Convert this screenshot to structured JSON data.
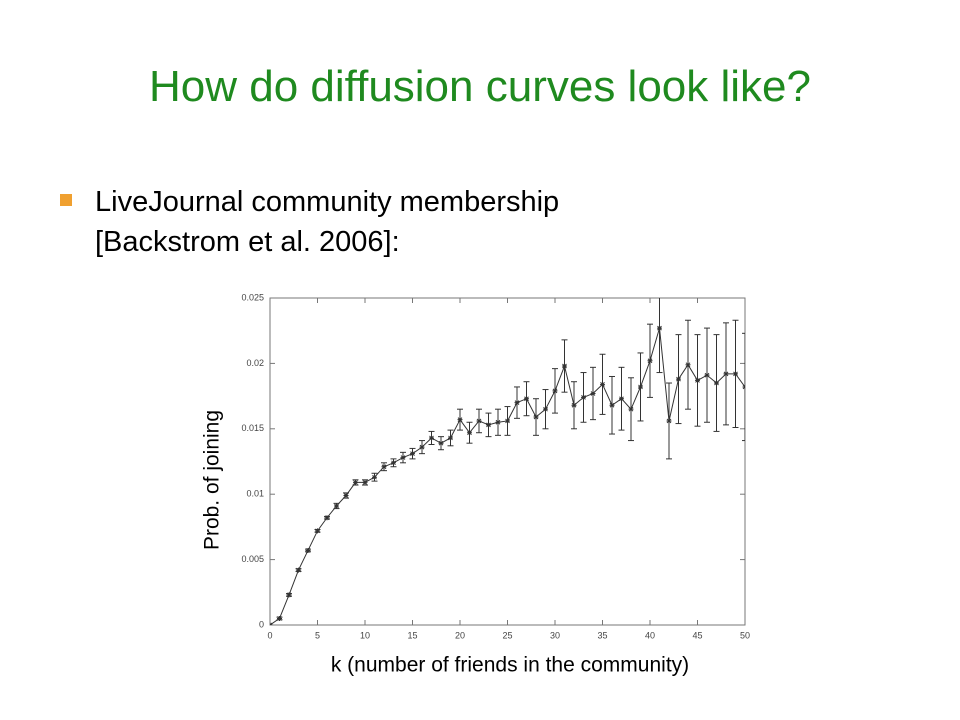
{
  "title": "How do diffusion curves look like?",
  "bullet": [
    "LiveJournal community membership",
    "[Backstrom et al. 2006]:"
  ],
  "chart_data": {
    "type": "line",
    "x_label": "k (number of friends in the community)",
    "y_label": "Prob. of joining",
    "x": [
      0,
      1,
      2,
      3,
      4,
      5,
      6,
      7,
      8,
      9,
      10,
      11,
      12,
      13,
      14,
      15,
      16,
      17,
      18,
      19,
      20,
      21,
      22,
      23,
      24,
      25,
      26,
      27,
      28,
      29,
      30,
      31,
      32,
      33,
      34,
      35,
      36,
      37,
      38,
      39,
      40,
      41,
      42,
      43,
      44,
      45,
      46,
      47,
      48,
      49,
      50
    ],
    "series": [
      {
        "color": "#333333",
        "values": [
          0,
          0.0005,
          0.0023,
          0.0042,
          0.0057,
          0.0072,
          0.0082,
          0.0091,
          0.0099,
          0.0109,
          0.0109,
          0.0113,
          0.0121,
          0.0124,
          0.0128,
          0.0131,
          0.0136,
          0.0143,
          0.0139,
          0.0143,
          0.0157,
          0.0147,
          0.0156,
          0.0153,
          0.0155,
          0.0156,
          0.017,
          0.0173,
          0.0159,
          0.0165,
          0.0179,
          0.0198,
          0.0168,
          0.0174,
          0.0177,
          0.0184,
          0.0168,
          0.0173,
          0.0165,
          0.0182,
          0.0202,
          0.0227,
          0.0156,
          0.0188,
          0.0199,
          0.0187,
          0.0191,
          0.0185,
          0.0192,
          0.0192,
          0.0182
        ],
        "errors": [
          0,
          0.0001,
          0.0001,
          0.0001,
          0.0001,
          0.0001,
          0.0001,
          0.0002,
          0.0002,
          0.0002,
          0.0002,
          0.0003,
          0.0003,
          0.0003,
          0.0004,
          0.0004,
          0.0005,
          0.0005,
          0.0005,
          0.0006,
          0.0008,
          0.0008,
          0.0009,
          0.0009,
          0.001,
          0.0011,
          0.0012,
          0.0013,
          0.0014,
          0.0015,
          0.0017,
          0.002,
          0.0018,
          0.0019,
          0.002,
          0.0023,
          0.0022,
          0.0024,
          0.0024,
          0.0026,
          0.0028,
          0.0034,
          0.0029,
          0.0034,
          0.0034,
          0.0035,
          0.0036,
          0.0037,
          0.0039,
          0.0041,
          0.0041
        ]
      }
    ],
    "xlim": [
      0,
      50
    ],
    "xticks": [
      0,
      5,
      10,
      15,
      20,
      25,
      30,
      35,
      40,
      45,
      50
    ],
    "ylim": [
      0,
      0.025
    ],
    "yticks": [
      0,
      0.005,
      0.01,
      0.015,
      0.02,
      0.025
    ]
  }
}
